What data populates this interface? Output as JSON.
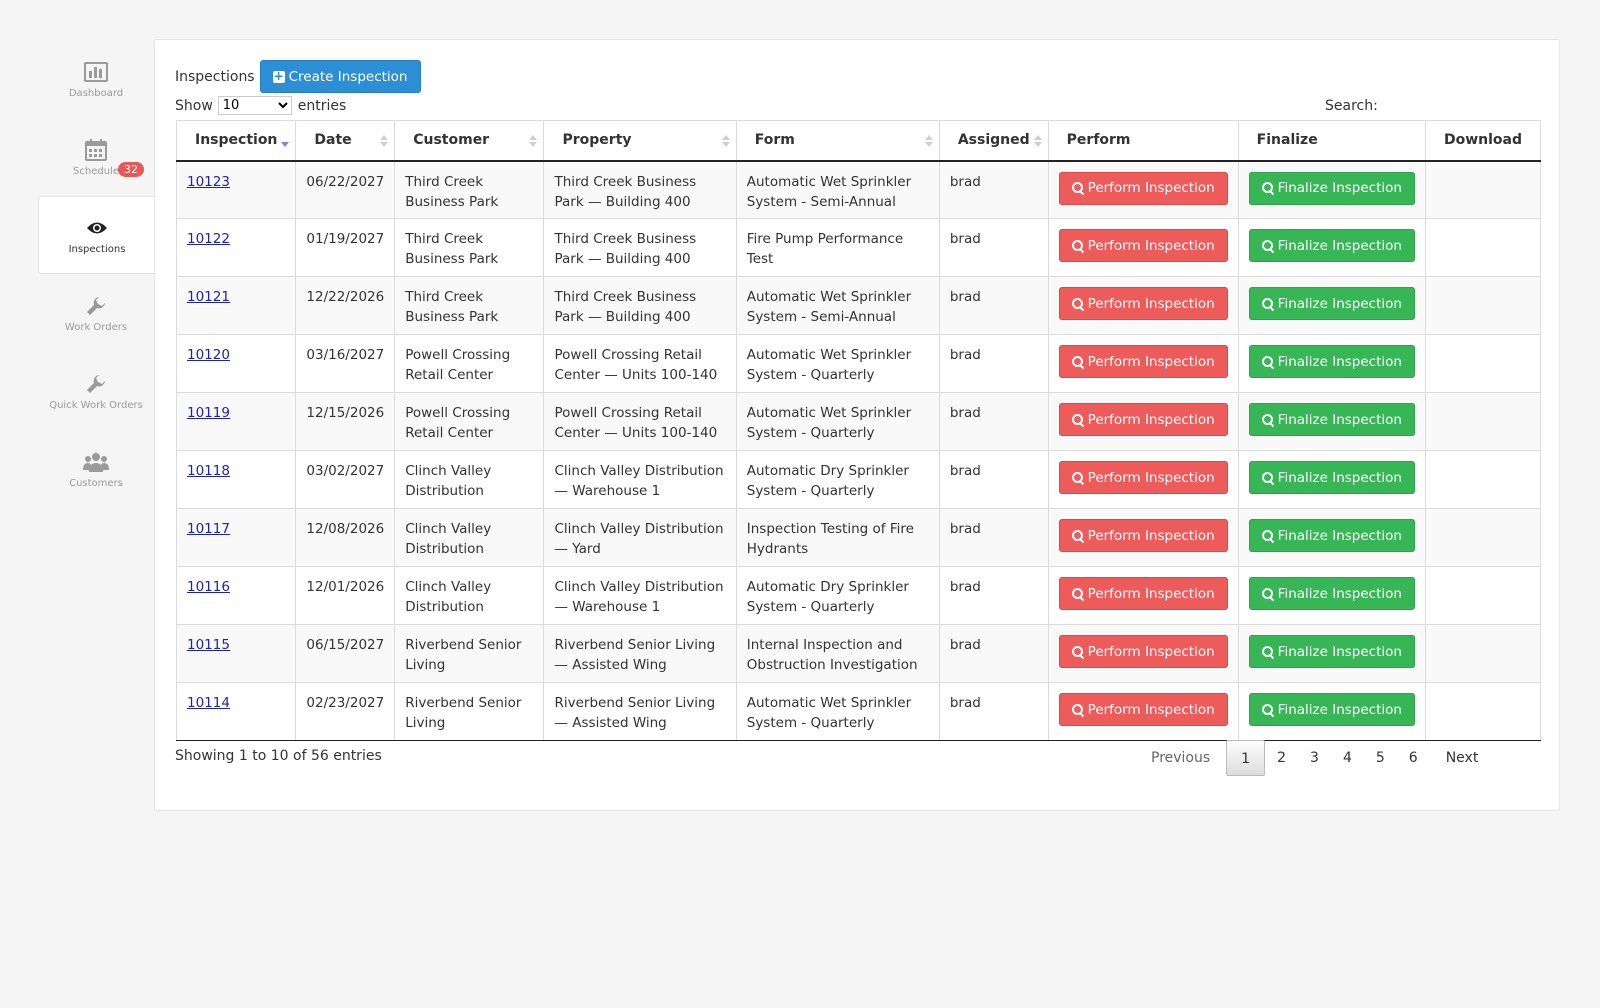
{
  "sidebar": {
    "items": [
      {
        "label": "Dashboard",
        "icon": "bar-chart-icon"
      },
      {
        "label": "Schedule",
        "icon": "calendar-icon",
        "badge": "32"
      },
      {
        "label": "Inspections",
        "icon": "eye-icon"
      },
      {
        "label": "Work Orders",
        "icon": "wrench-icon"
      },
      {
        "label": "Quick Work Orders",
        "icon": "wrench-icon"
      },
      {
        "label": "Customers",
        "icon": "users-icon"
      }
    ]
  },
  "main": {
    "title": "Inspections",
    "create_label": "Create Inspection",
    "length": {
      "prefix": "Show",
      "value": "10",
      "suffix": "entries"
    },
    "search_label": "Search:",
    "columns": [
      "Inspection",
      "Date",
      "Customer",
      "Property",
      "Form",
      "Assigned",
      "Perform",
      "Finalize",
      "Download"
    ],
    "perform_label": "Perform Inspection",
    "finalize_label": "Finalize Inspection",
    "rows": [
      {
        "id": "10123",
        "date": "06/22/2027",
        "customer": "Third Creek Business Park",
        "property": "Third Creek Business Park — Building 400",
        "form": "Automatic Wet Sprinkler System - Semi-Annual",
        "assigned": "brad"
      },
      {
        "id": "10122",
        "date": "01/19/2027",
        "customer": "Third Creek Business Park",
        "property": "Third Creek Business Park — Building 400",
        "form": "Fire Pump Performance Test",
        "assigned": "brad"
      },
      {
        "id": "10121",
        "date": "12/22/2026",
        "customer": "Third Creek Business Park",
        "property": "Third Creek Business Park — Building 400",
        "form": "Automatic Wet Sprinkler System - Semi-Annual",
        "assigned": "brad"
      },
      {
        "id": "10120",
        "date": "03/16/2027",
        "customer": "Powell Crossing Retail Center",
        "property": "Powell Crossing Retail Center — Units 100-140",
        "form": "Automatic Wet Sprinkler System - Quarterly",
        "assigned": "brad"
      },
      {
        "id": "10119",
        "date": "12/15/2026",
        "customer": "Powell Crossing Retail Center",
        "property": "Powell Crossing Retail Center — Units 100-140",
        "form": "Automatic Wet Sprinkler System - Quarterly",
        "assigned": "brad"
      },
      {
        "id": "10118",
        "date": "03/02/2027",
        "customer": "Clinch Valley Distribution",
        "property": "Clinch Valley Distribution — Warehouse 1",
        "form": "Automatic Dry Sprinkler System - Quarterly",
        "assigned": "brad"
      },
      {
        "id": "10117",
        "date": "12/08/2026",
        "customer": "Clinch Valley Distribution",
        "property": "Clinch Valley Distribution — Yard",
        "form": "Inspection Testing of Fire Hydrants",
        "assigned": "brad"
      },
      {
        "id": "10116",
        "date": "12/01/2026",
        "customer": "Clinch Valley Distribution",
        "property": "Clinch Valley Distribution — Warehouse 1",
        "form": "Automatic Dry Sprinkler System - Quarterly",
        "assigned": "brad"
      },
      {
        "id": "10115",
        "date": "06/15/2027",
        "customer": "Riverbend Senior Living",
        "property": "Riverbend Senior Living — Assisted Wing",
        "form": "Internal Inspection and Obstruction Investigation",
        "assigned": "brad"
      },
      {
        "id": "10114",
        "date": "02/23/2027",
        "customer": "Riverbend Senior Living",
        "property": "Riverbend Senior Living — Assisted Wing",
        "form": "Automatic Wet Sprinkler System - Quarterly",
        "assigned": "brad"
      }
    ],
    "info": "Showing 1 to 10 of 56 entries",
    "pager": {
      "previous": "Previous",
      "pages": [
        "1",
        "2",
        "3",
        "4",
        "5",
        "6"
      ],
      "current": "1",
      "next": "Next"
    }
  },
  "colors": {
    "primary": "#2c8fd6",
    "danger": "#ed5b5b",
    "success": "#36b655",
    "link": "#1c22b8",
    "badge": "#e85858"
  }
}
